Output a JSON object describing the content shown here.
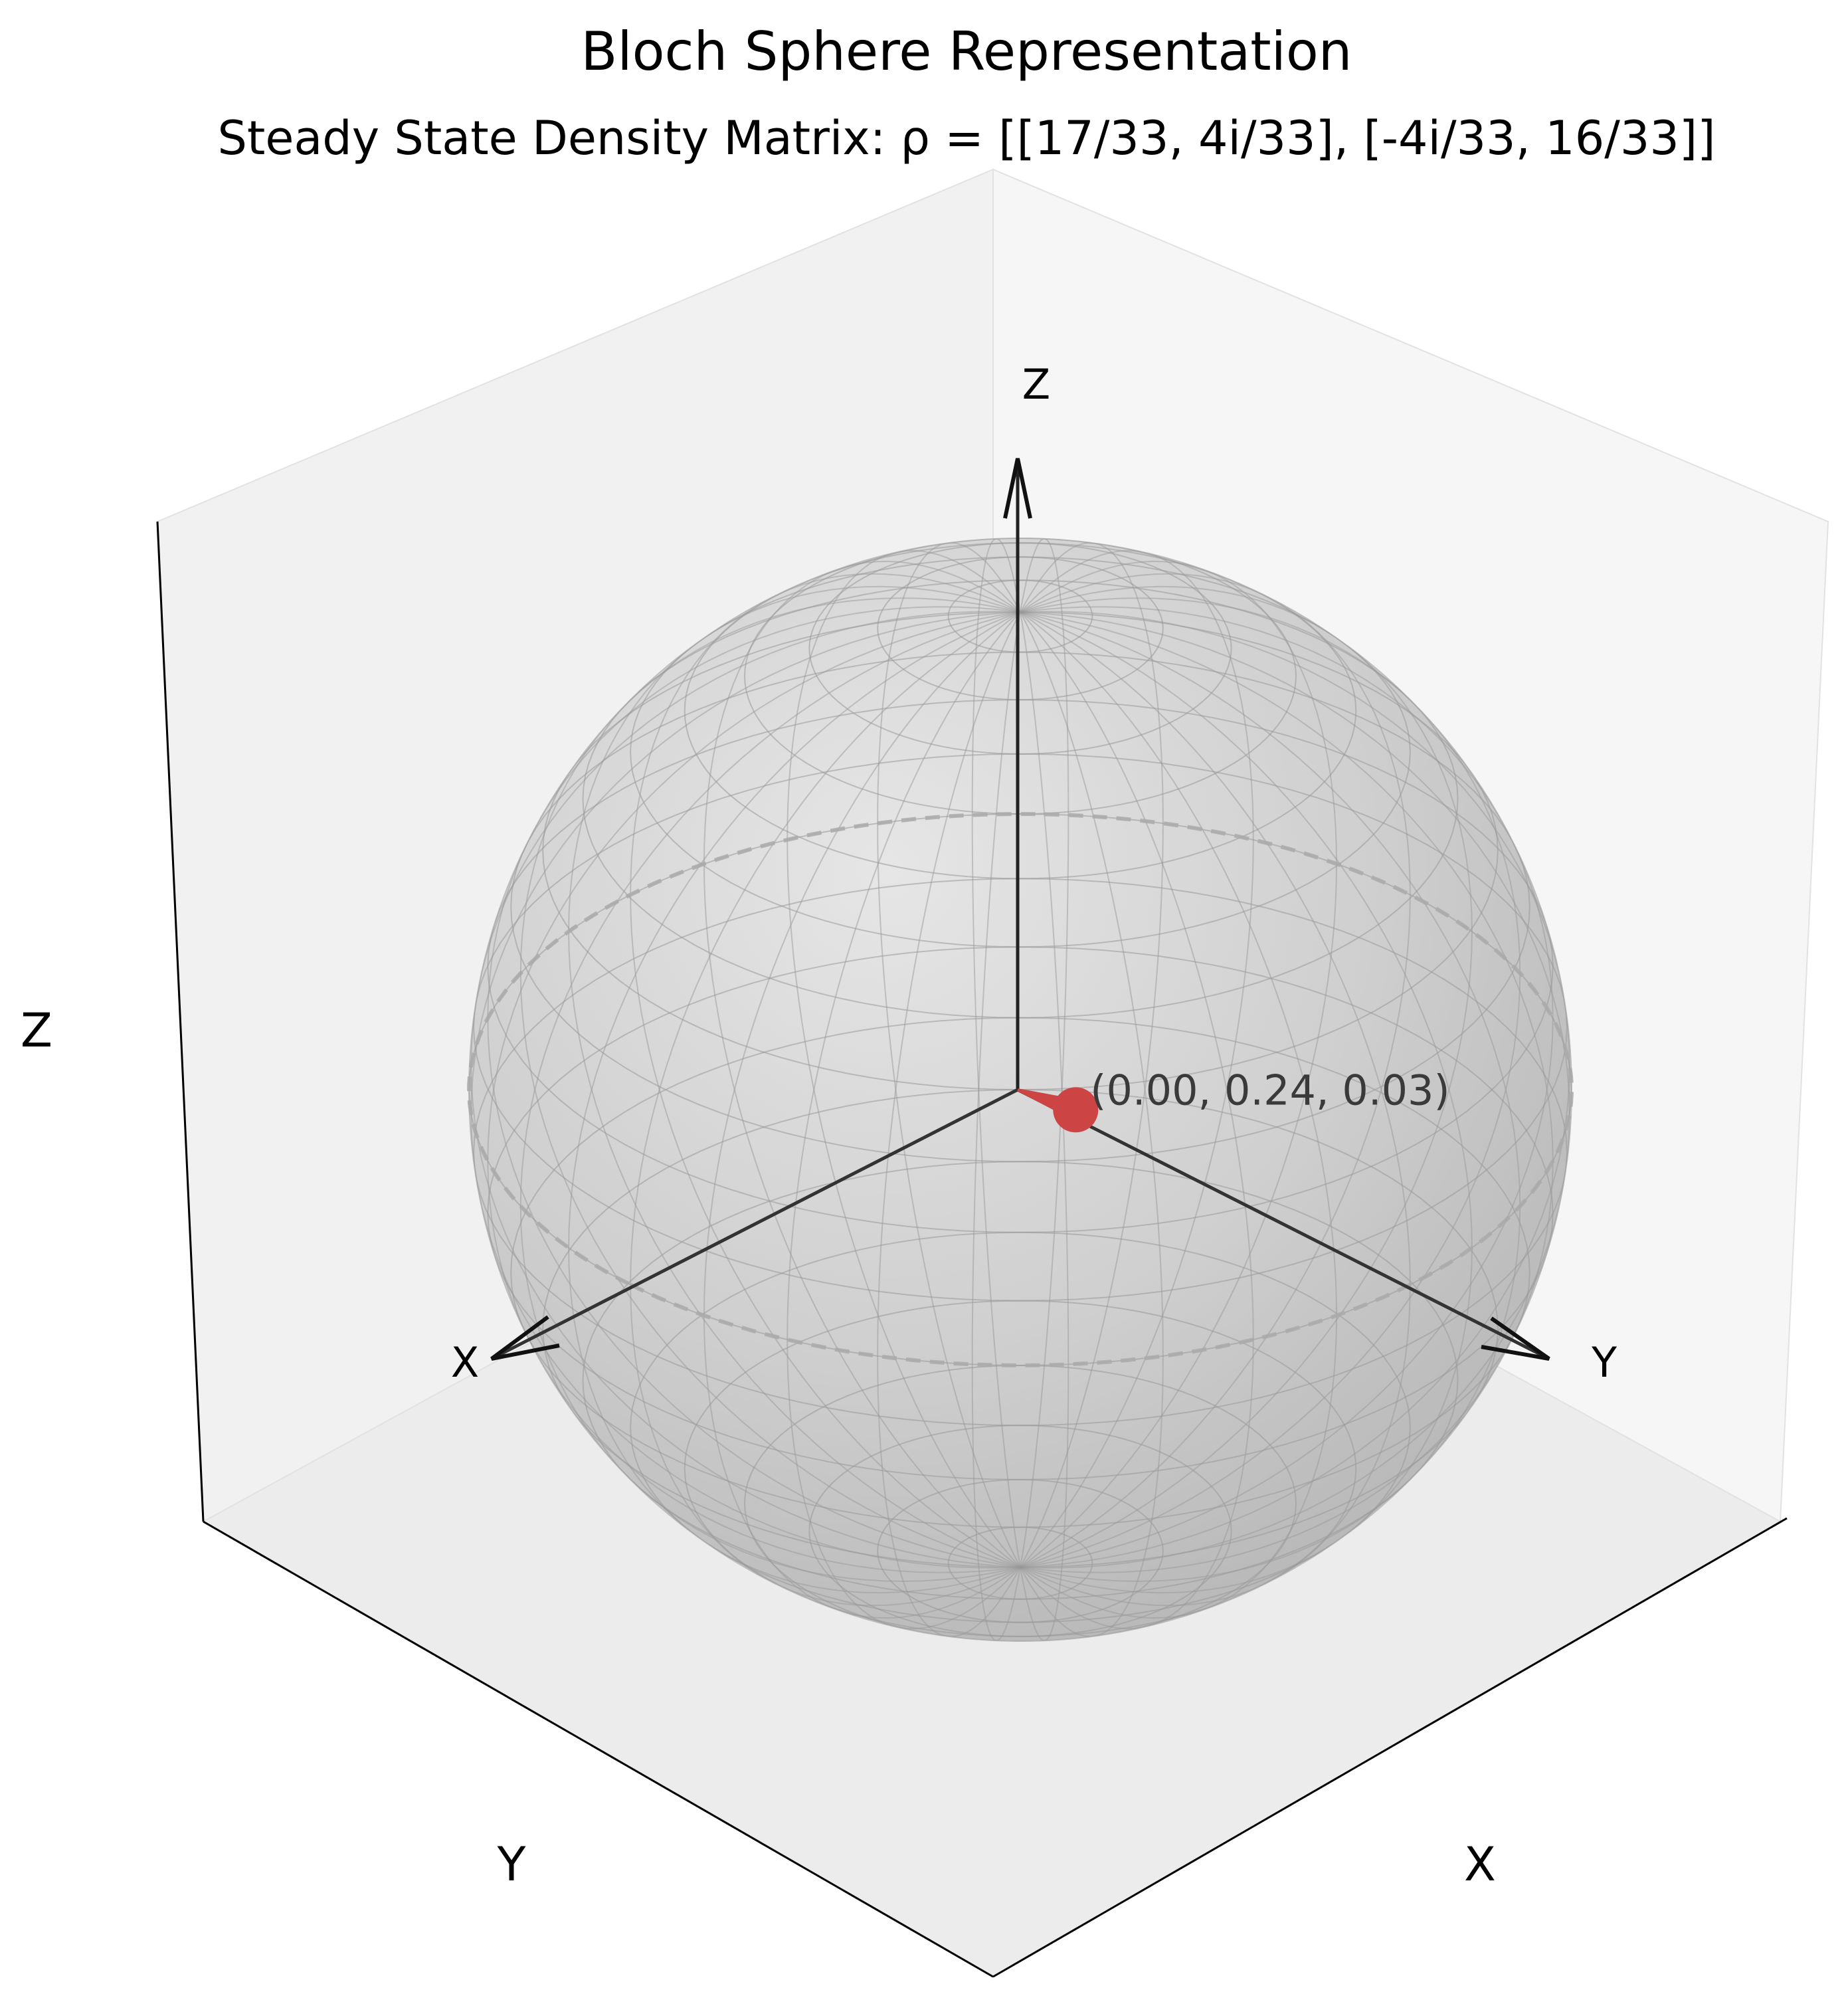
{
  "title": "Bloch Sphere Representation",
  "subtitle": "Steady State Density Matrix: ρ = [[17/33, 4i/33], [-4i/33, 16/33]]",
  "pane_axis_labels": {
    "z": "Z",
    "y": "Y",
    "x": "X"
  },
  "sphere_axis_labels": {
    "z": "Z",
    "x": "X",
    "y": "Y"
  },
  "state_point": {
    "label": "(0.00, 0.24, 0.03)",
    "x": 0.0,
    "y": 0.24,
    "z": 0.03
  },
  "colors": {
    "state_vector": "#cc4444",
    "sphere_fill": "#cccccc",
    "pane_fill": "#f2f2f2",
    "axis_line": "#333333",
    "grid_line": "#999999",
    "equator": "#aaaaaa"
  }
}
